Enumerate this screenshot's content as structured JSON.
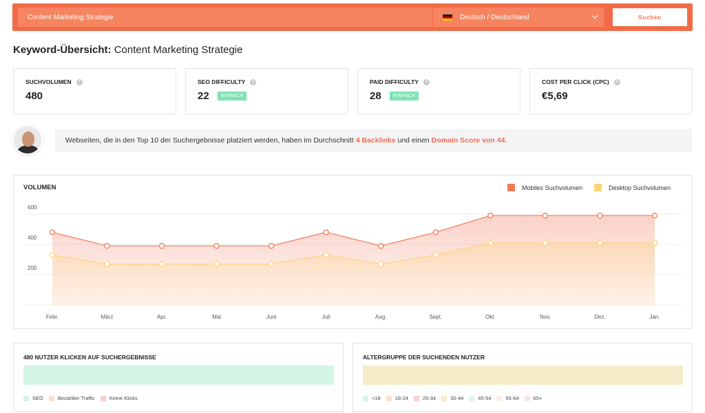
{
  "search": {
    "query": "Content Marketing Strategie",
    "language": "Deutsch / Deutschland",
    "button_label": "Suchen"
  },
  "title": {
    "prefix": "Keyword-Übersicht:",
    "keyword": "Content Marketing Strategie"
  },
  "metrics": [
    {
      "label": "SUCHVOLUMEN",
      "value": "480",
      "badge": ""
    },
    {
      "label": "SEO DIFFICULTY",
      "value": "22",
      "badge": "EINFACH"
    },
    {
      "label": "PAID DIFFICULTY",
      "value": "28",
      "badge": "EINFACH"
    },
    {
      "label": "COST PER CLICK (CPC)",
      "value": "€5,69",
      "badge": ""
    }
  ],
  "tip": {
    "text_before": "Webseiten, die in den Top 10 der Suchergebnisse platziert werden, haben im Durchschnitt",
    "backlinks": "4 Backlinks",
    "text_middle": "und einen",
    "domain_score": "Domain Score von 44",
    "text_after": "."
  },
  "volume": {
    "title": "VOLUMEN",
    "legend_mobile": "Mobiles Suchvolumen",
    "legend_desktop": "Desktop Suchvolumen"
  },
  "chart_data": {
    "type": "area",
    "categories": [
      "Febr.",
      "März",
      "Apr.",
      "Mai",
      "Juni",
      "Juli",
      "Aug.",
      "Sept.",
      "Okt.",
      "Nov.",
      "Dez.",
      "Jan."
    ],
    "series": [
      {
        "name": "Mobiles Suchvolumen",
        "values": [
          480,
          390,
          390,
          390,
          390,
          480,
          390,
          480,
          590,
          590,
          590,
          590
        ],
        "color": "#f07a55"
      },
      {
        "name": "Desktop Suchvolumen",
        "values": [
          330,
          270,
          270,
          270,
          270,
          330,
          270,
          330,
          410,
          410,
          410,
          410
        ],
        "color": "#fdd37a"
      }
    ],
    "yticks": [
      200,
      400,
      600
    ],
    "ylim": [
      0,
      600
    ],
    "grid": true,
    "legend": "top-right"
  },
  "clicks": {
    "title": "480 NUTZER KLICKEN AUF SUCHERGEBNISSE",
    "bar_color": "#d3f5e6",
    "legend": [
      {
        "label": "SEO",
        "color": "#d3f5e6"
      },
      {
        "label": "Bezahlter Traffic",
        "color": "#fde0cf"
      },
      {
        "label": "Keine Klicks",
        "color": "#fbd0d0"
      }
    ]
  },
  "age": {
    "title": "ALTERGRUPPE DER SUCHENDEN NUTZER",
    "bar_color": "#f7ecc9",
    "legend": [
      {
        "label": "<18",
        "color": "#d3f5e6"
      },
      {
        "label": "18-24",
        "color": "#fde0cf"
      },
      {
        "label": "25-34",
        "color": "#fbd0d0"
      },
      {
        "label": "35-44",
        "color": "#f7ecc9"
      },
      {
        "label": "45-54",
        "color": "#dff5ee"
      },
      {
        "label": "55-64",
        "color": "#fbeee0"
      },
      {
        "label": "65+",
        "color": "#fbe6e6"
      }
    ]
  }
}
